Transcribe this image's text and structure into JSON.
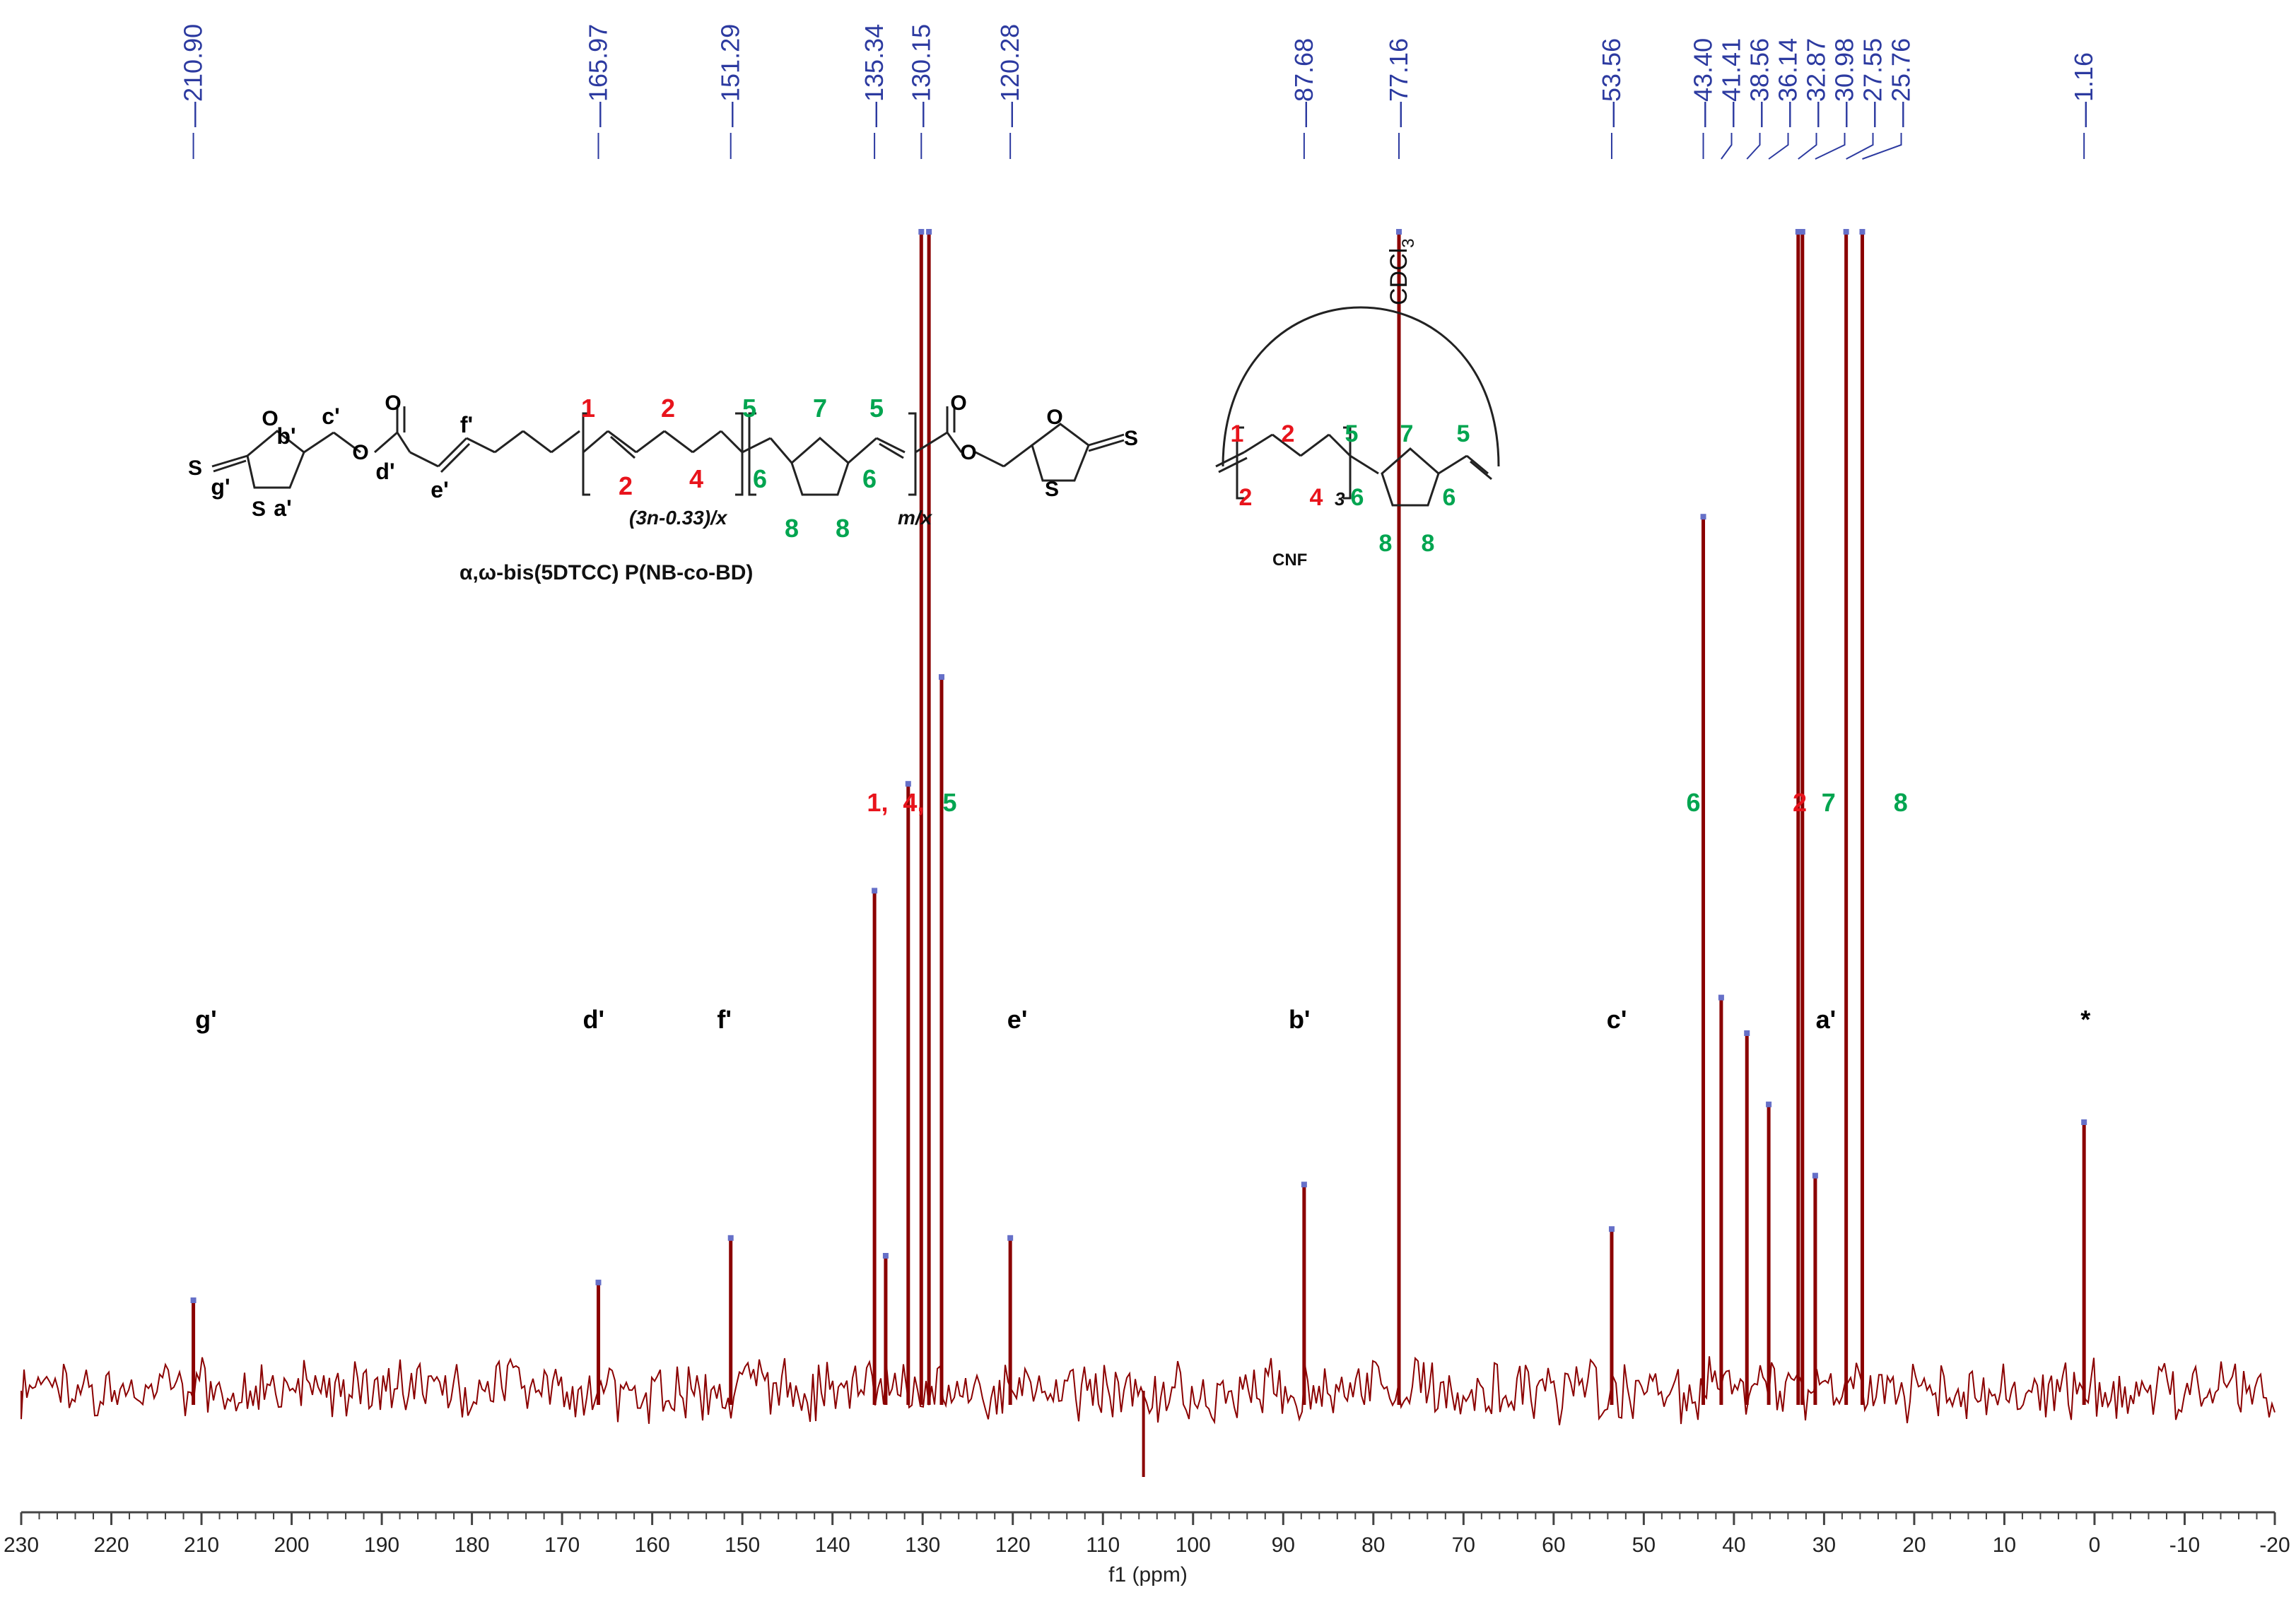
{
  "chart_data": {
    "type": "line",
    "xlabel": "f1 (ppm)",
    "xlim": [
      230,
      -20
    ],
    "x_reversed": true,
    "x_ticks": [
      "230",
      "220",
      "210",
      "200",
      "190",
      "180",
      "170",
      "160",
      "150",
      "140",
      "130",
      "120",
      "110",
      "100",
      "90",
      "80",
      "70",
      "60",
      "50",
      "40",
      "30",
      "20",
      "10",
      "0",
      "-10",
      "-20"
    ],
    "series_color": "#8b0000",
    "peak_list": [
      "210.90",
      "165.97",
      "151.29",
      "135.34",
      "130.15",
      "120.28",
      "87.68",
      "77.16",
      "53.56",
      "43.40",
      "41.41",
      "38.56",
      "36.14",
      "32.87",
      "30.98",
      "27.55",
      "25.76",
      "1.16"
    ],
    "peaks": [
      {
        "ppm": 210.9,
        "intensity": 0.1
      },
      {
        "ppm": 165.97,
        "intensity": 0.12
      },
      {
        "ppm": 151.29,
        "intensity": 0.17
      },
      {
        "ppm": 135.34,
        "intensity": 0.56
      },
      {
        "ppm": 134.1,
        "intensity": 0.15
      },
      {
        "ppm": 131.6,
        "intensity": 0.68
      },
      {
        "ppm": 130.15,
        "intensity": 1.3
      },
      {
        "ppm": 129.3,
        "intensity": 1.3
      },
      {
        "ppm": 127.9,
        "intensity": 0.8
      },
      {
        "ppm": 120.28,
        "intensity": 0.17
      },
      {
        "ppm": 87.68,
        "intensity": 0.23
      },
      {
        "ppm": 77.16,
        "intensity": 1.3
      },
      {
        "ppm": 53.56,
        "intensity": 0.18
      },
      {
        "ppm": 43.4,
        "intensity": 0.98
      },
      {
        "ppm": 41.41,
        "intensity": 0.44
      },
      {
        "ppm": 38.56,
        "intensity": 0.4
      },
      {
        "ppm": 36.14,
        "intensity": 0.32
      },
      {
        "ppm": 32.87,
        "intensity": 1.3
      },
      {
        "ppm": 32.4,
        "intensity": 1.3
      },
      {
        "ppm": 30.98,
        "intensity": 0.24
      },
      {
        "ppm": 27.55,
        "intensity": 1.3
      },
      {
        "ppm": 25.76,
        "intensity": 1.3
      },
      {
        "ppm": 1.16,
        "intensity": 0.3
      }
    ],
    "solvent_label": "CDCl",
    "solvent_subscript": "3",
    "peak_assignments": [
      {
        "ppm": 209.5,
        "label": "g'",
        "color": "#000000"
      },
      {
        "ppm": 166.5,
        "label": "d'",
        "color": "#000000"
      },
      {
        "ppm": 152.0,
        "label": "f'",
        "color": "#000000"
      },
      {
        "ppm": 119.5,
        "label": "e'",
        "color": "#000000"
      },
      {
        "ppm": 88.2,
        "label": "b'",
        "color": "#000000"
      },
      {
        "ppm": 53.0,
        "label": "c'",
        "color": "#000000"
      },
      {
        "ppm": 29.8,
        "label": "a'",
        "color": "#000000"
      },
      {
        "ppm": 1.0,
        "label": "*",
        "color": "#000000"
      }
    ],
    "group_assignments": [
      {
        "ppm": 135.0,
        "label": "1,",
        "color": "#e8141c"
      },
      {
        "ppm": 131.0,
        "label": "4,",
        "color": "#e8141c"
      },
      {
        "ppm": 127.0,
        "label": "5",
        "color": "#00a550"
      },
      {
        "ppm": 44.5,
        "label": "6",
        "color": "#00a550"
      },
      {
        "ppm": 32.7,
        "label": "2",
        "color": "#e8141c"
      },
      {
        "ppm": 29.5,
        "label": "7",
        "color": "#00a550"
      },
      {
        "ppm": 21.5,
        "label": "8",
        "color": "#00a550"
      }
    ]
  },
  "structure": {
    "polymer_name": "α,ω-bis(5DTCC) P(NB-co-BD)",
    "repeat_1": "(3n-0.33)/x",
    "repeat_2": "m/x",
    "cyclic_label": "CNF",
    "cyclic_subscript": "3",
    "colors": {
      "red": "#e8141c",
      "green": "#00a550",
      "black": "#000000"
    }
  }
}
